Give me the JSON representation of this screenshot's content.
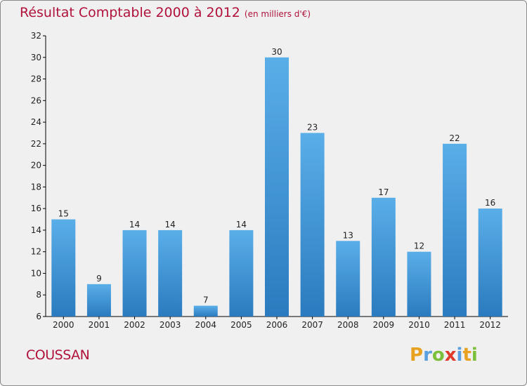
{
  "title": "Résultat Comptable 2000 à 2012",
  "unit": "(en milliers d'€)",
  "town": "COUSSAN",
  "logo": {
    "text": "Proxiti"
  },
  "colors": {
    "title": "#b0123c",
    "bar_top": "#5aaee8",
    "bar_bottom": "#2a7bbf",
    "axis": "#000000"
  },
  "chart_data": {
    "type": "bar",
    "title": "Résultat Comptable 2000 à 2012",
    "xlabel": "",
    "ylabel": "(en milliers d'€)",
    "categories": [
      "2000",
      "2001",
      "2002",
      "2003",
      "2004",
      "2005",
      "2006",
      "2007",
      "2008",
      "2009",
      "2010",
      "2011",
      "2012"
    ],
    "values": [
      15,
      9,
      14,
      14,
      7,
      14,
      30,
      23,
      13,
      17,
      12,
      22,
      16
    ],
    "ylim": [
      6,
      32
    ],
    "yticks": [
      6,
      8,
      10,
      12,
      14,
      16,
      18,
      20,
      22,
      24,
      26,
      28,
      30,
      32
    ],
    "grid": false
  }
}
